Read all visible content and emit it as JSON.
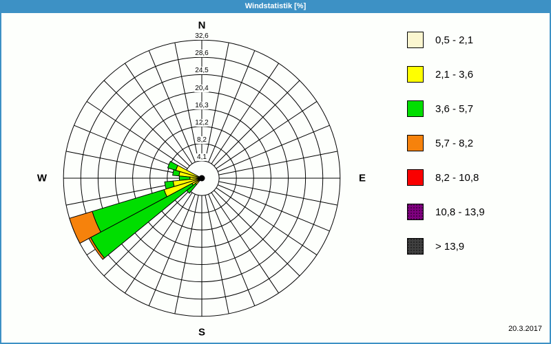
{
  "window": {
    "title": "Windstatistik [%]",
    "date_label": "20.3.2017"
  },
  "colors": {
    "titlebar": "#3D91C5",
    "border": "#3D91C5",
    "background": "#FDFFFC",
    "grid": "#000000"
  },
  "compass": {
    "north": "N",
    "east": "E",
    "south": "S",
    "west": "W"
  },
  "legend": {
    "items": [
      {
        "label": "0,5 - 2,1",
        "color": "#FBF6D0",
        "texture": "solid"
      },
      {
        "label": "2,1 - 3,6",
        "color": "#FFFF00",
        "texture": "solid"
      },
      {
        "label": "3,6 - 5,7",
        "color": "#00DE00",
        "texture": "solid"
      },
      {
        "label": "5,7 - 8,2",
        "color": "#F6820C",
        "texture": "solid"
      },
      {
        "label": "8,2 - 10,8",
        "color": "#FA0000",
        "texture": "solid"
      },
      {
        "label": "10,8 - 13,9",
        "color": "#800080",
        "texture": "dots"
      },
      {
        "label": "> 13,9",
        "color": "#404040",
        "texture": "dots"
      }
    ]
  },
  "chart_data": {
    "type": "windrose",
    "title": "Windstatistik [%]",
    "unit": "%",
    "sectors": 32,
    "sector_width_deg": 11.25,
    "max_value": 32.6,
    "ring_values": [
      4.1,
      8.2,
      12.2,
      16.3,
      20.4,
      24.5,
      28.6,
      32.6
    ],
    "ring_labels": [
      "4,1",
      "8,2",
      "12,2",
      "16,3",
      "20,4",
      "24,5",
      "28,6",
      "32,6"
    ],
    "legend_title": "",
    "legend_position": "right",
    "grid": true,
    "directions": [
      {
        "name": "WNW",
        "dir_deg": 292.5,
        "segments": [
          {
            "bin": 1,
            "to": 6.4
          },
          {
            "bin": 2,
            "to": 8.4
          }
        ]
      },
      {
        "name": "WbN",
        "dir_deg": 281.25,
        "segments": [
          {
            "bin": 1,
            "to": 5.4
          },
          {
            "bin": 2,
            "to": 6.9
          }
        ]
      },
      {
        "name": "W",
        "dir_deg": 270,
        "segments": [
          {
            "bin": 1,
            "to": 2.8
          },
          {
            "bin": 2,
            "to": 5.3
          }
        ]
      },
      {
        "name": "WbS",
        "dir_deg": 258.75,
        "segments": [
          {
            "bin": 1,
            "to": 6.8
          },
          {
            "bin": 2,
            "to": 8.8
          }
        ]
      },
      {
        "name": "WSW",
        "dir_deg": 247.5,
        "segments": [
          {
            "bin": 1,
            "to": 9.3
          },
          {
            "bin": 2,
            "to": 27.0
          },
          {
            "bin": 3,
            "to": 32.6
          }
        ]
      },
      {
        "name": "SWbW",
        "dir_deg": 236.25,
        "segments": [
          {
            "bin": 1,
            "to": 2.6
          },
          {
            "bin": 2,
            "to": 29.7
          },
          {
            "bin": 3,
            "to": 30.2
          }
        ]
      },
      {
        "name": "SW",
        "dir_deg": 225,
        "segments": [
          {
            "bin": 1,
            "to": 1.9
          },
          {
            "bin": 2,
            "to": 4.6
          }
        ]
      }
    ]
  }
}
